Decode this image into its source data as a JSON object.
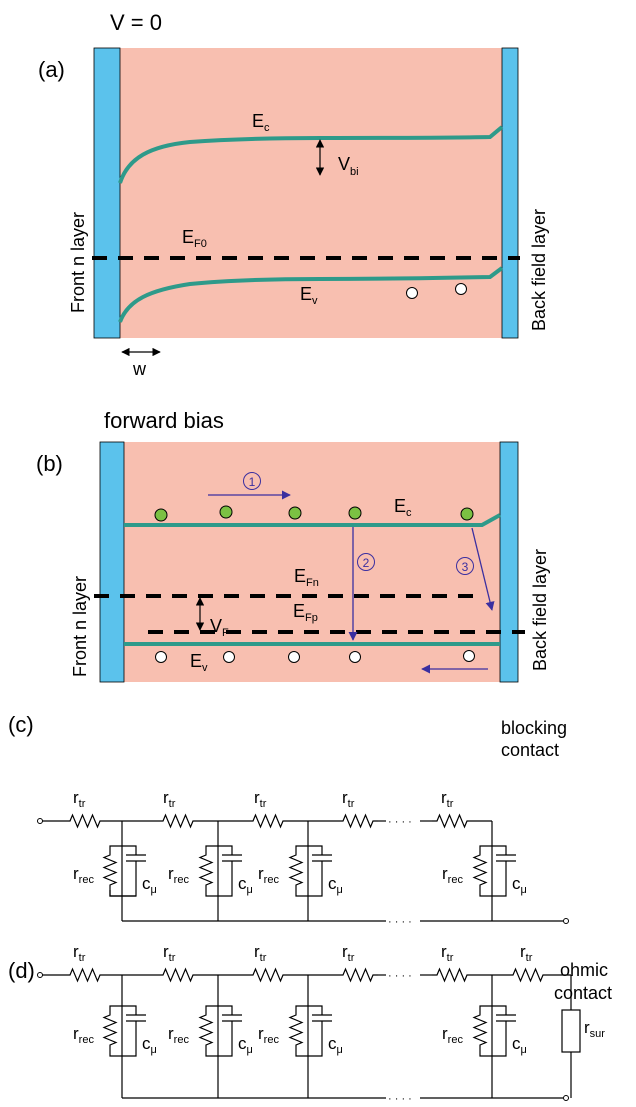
{
  "colors": {
    "slab": "#F8BFB0",
    "contact": "#5BC2EC",
    "band": "#2E9A8A",
    "arrow": "#3B2FA0",
    "electron": "#7BC143",
    "hole": "#ffffff"
  },
  "panel_a": {
    "header": "V = 0",
    "label": "(a)",
    "ec": {
      "main": "E",
      "sub": "c"
    },
    "vbi": {
      "main": "V",
      "sub": "bi"
    },
    "ef0": {
      "main": "E",
      "sub": "F0"
    },
    "ev": {
      "main": "E",
      "sub": "v"
    },
    "w": "w",
    "front": "Front n layer",
    "back": "Back field layer"
  },
  "panel_b": {
    "header": "forward bias",
    "label": "(b)",
    "ec": {
      "main": "E",
      "sub": "c"
    },
    "efn": {
      "main": "E",
      "sub": "Fn"
    },
    "efp": {
      "main": "E",
      "sub": "Fp"
    },
    "vf": {
      "main": "V",
      "sub": "F"
    },
    "ev": {
      "main": "E",
      "sub": "v"
    },
    "proc1": "1",
    "proc2": "2",
    "proc3": "3",
    "front": "Front n layer",
    "back": "Back field layer"
  },
  "panel_c": {
    "label": "(c)",
    "rtr": {
      "main": "r",
      "sub": "tr"
    },
    "rrec": {
      "main": "r",
      "sub": "rec"
    },
    "cmu": {
      "main": "c",
      "sub": "μ"
    },
    "dots": "· · · ·",
    "contact_line1": "blocking",
    "contact_line2": "contact"
  },
  "panel_d": {
    "label": "(d)",
    "rtr": {
      "main": "r",
      "sub": "tr"
    },
    "rrec": {
      "main": "r",
      "sub": "rec"
    },
    "cmu": {
      "main": "c",
      "sub": "μ"
    },
    "rsur": {
      "main": "r",
      "sub": "sur"
    },
    "dots": "· · · ·",
    "contact_line1": "ohmic",
    "contact_line2": "contact"
  }
}
